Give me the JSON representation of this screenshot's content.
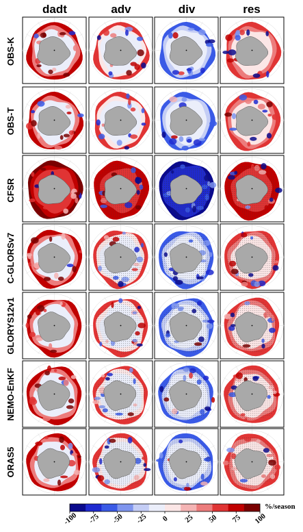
{
  "columns": [
    "dadt",
    "adv",
    "div",
    "res"
  ],
  "rows": [
    "OBS-K",
    "OBS-T",
    "CFSR",
    "C-GLORSv7",
    "GLORYS12v1",
    "NEMO-EnKF",
    "ORAS5"
  ],
  "colorbar": {
    "ticks": [
      "-100",
      "-75",
      "-50",
      "-25",
      "0",
      "25",
      "50",
      "75",
      "100"
    ],
    "unit": "%/season",
    "colors": [
      "#0a0a8c",
      "#1f2ad0",
      "#3a5ae6",
      "#7f95ee",
      "#c4cdf5",
      "#ebeefa",
      "#fbe6e6",
      "#f4b4b4",
      "#ec7c7c",
      "#e03434",
      "#c00000",
      "#7a0000"
    ]
  },
  "map_colors": {
    "continent": "#a9a9a9",
    "ice_light": "#e6e9f6",
    "grid": "#d9d9d9"
  }
}
